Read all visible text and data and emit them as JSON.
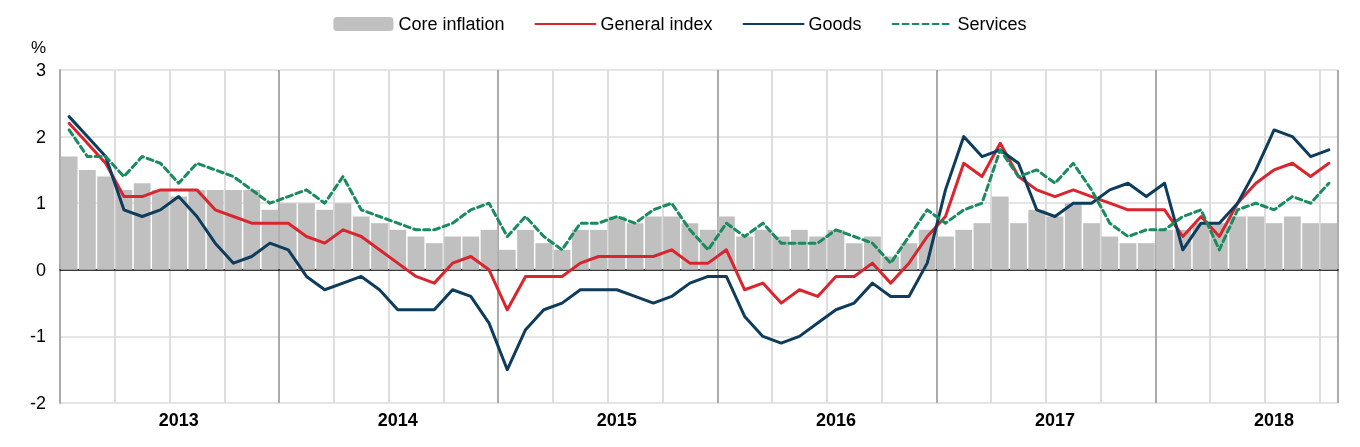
{
  "chart_data": {
    "type": "bar",
    "ylabel": "%",
    "categories": [
      null,
      null,
      null,
      null,
      null,
      null,
      "2013",
      null,
      null,
      null,
      null,
      null,
      null,
      null,
      null,
      null,
      null,
      null,
      "2014",
      null,
      null,
      null,
      null,
      null,
      null,
      null,
      null,
      null,
      null,
      null,
      "2015",
      null,
      null,
      null,
      null,
      null,
      null,
      null,
      null,
      null,
      null,
      null,
      "2016",
      null,
      null,
      null,
      null,
      null,
      null,
      null,
      null,
      null,
      null,
      null,
      "2017",
      null,
      null,
      null,
      null,
      null,
      null,
      null,
      null,
      null,
      null,
      null,
      "2018",
      null,
      null,
      null
    ],
    "series": [
      {
        "name": "Core inflation",
        "color": "#c0c0c0",
        "values": [
          1.7,
          1.5,
          1.4,
          1.2,
          1.3,
          1.2,
          1.1,
          1.2,
          1.2,
          1.2,
          1.2,
          0.9,
          1.0,
          1.0,
          0.9,
          1.0,
          0.8,
          0.7,
          0.6,
          0.5,
          0.4,
          0.5,
          0.5,
          0.6,
          0.3,
          0.6,
          0.4,
          0.3,
          0.6,
          0.6,
          0.8,
          0.7,
          0.8,
          0.8,
          0.7,
          0.6,
          0.8,
          0.5,
          0.6,
          0.5,
          0.6,
          0.5,
          0.6,
          0.4,
          0.5,
          0.2,
          0.4,
          0.6,
          0.5,
          0.6,
          0.7,
          1.1,
          0.7,
          0.9,
          0.8,
          1.0,
          0.7,
          0.5,
          0.4,
          0.4,
          0.6,
          0.6,
          0.7,
          0.7,
          0.8,
          0.8,
          0.7,
          0.8,
          0.7,
          0.7
        ]
      },
      {
        "name": "General index",
        "type": "line",
        "color": "#d9262e",
        "line_style": "solid",
        "values": [
          2.2,
          1.9,
          1.6,
          1.1,
          1.1,
          1.2,
          1.2,
          1.2,
          0.9,
          0.8,
          0.7,
          0.7,
          0.7,
          0.5,
          0.4,
          0.6,
          0.5,
          0.3,
          0.1,
          -0.1,
          -0.2,
          0.1,
          0.2,
          0.0,
          -0.6,
          -0.1,
          -0.1,
          -0.1,
          0.1,
          0.2,
          0.2,
          0.2,
          0.2,
          0.3,
          0.1,
          0.1,
          0.3,
          -0.3,
          -0.2,
          -0.5,
          -0.3,
          -0.4,
          -0.1,
          -0.1,
          0.1,
          -0.2,
          0.1,
          0.5,
          0.8,
          1.6,
          1.4,
          1.9,
          1.4,
          1.2,
          1.1,
          1.2,
          1.1,
          1.0,
          0.9,
          0.9,
          0.9,
          0.5,
          0.8,
          0.5,
          1.0,
          1.3,
          1.5,
          1.6,
          1.4,
          1.6
        ]
      },
      {
        "name": "Goods",
        "type": "line",
        "color": "#0d3c5c",
        "line_style": "solid",
        "values": [
          2.3,
          2.0,
          1.7,
          0.9,
          0.8,
          0.9,
          1.1,
          0.8,
          0.4,
          0.1,
          0.2,
          0.4,
          0.3,
          -0.1,
          -0.3,
          -0.2,
          -0.1,
          -0.3,
          -0.6,
          -0.6,
          -0.6,
          -0.3,
          -0.4,
          -0.8,
          -1.5,
          -0.9,
          -0.6,
          -0.5,
          -0.3,
          -0.3,
          -0.3,
          -0.4,
          -0.5,
          -0.4,
          -0.2,
          -0.1,
          -0.1,
          -0.7,
          -1.0,
          -1.1,
          -1.0,
          -0.8,
          -0.6,
          -0.5,
          -0.2,
          -0.4,
          -0.4,
          0.1,
          1.2,
          2.0,
          1.7,
          1.8,
          1.6,
          0.9,
          0.8,
          1.0,
          1.0,
          1.2,
          1.3,
          1.1,
          1.3,
          0.3,
          0.7,
          0.7,
          1.0,
          1.5,
          2.1,
          2.0,
          1.7,
          1.8
        ]
      },
      {
        "name": "Services",
        "type": "line",
        "color": "#1a8a5f",
        "line_style": "dashed",
        "values": [
          2.1,
          1.7,
          1.7,
          1.4,
          1.7,
          1.6,
          1.3,
          1.6,
          1.5,
          1.4,
          1.2,
          1.0,
          1.1,
          1.2,
          1.0,
          1.4,
          0.9,
          0.8,
          0.7,
          0.6,
          0.6,
          0.7,
          0.9,
          1.0,
          0.5,
          0.8,
          0.5,
          0.3,
          0.7,
          0.7,
          0.8,
          0.7,
          0.9,
          1.0,
          0.6,
          0.3,
          0.7,
          0.5,
          0.7,
          0.4,
          0.4,
          0.4,
          0.6,
          0.5,
          0.4,
          0.1,
          0.5,
          0.9,
          0.7,
          0.9,
          1.0,
          1.8,
          1.4,
          1.5,
          1.3,
          1.6,
          1.2,
          0.7,
          0.5,
          0.6,
          0.6,
          0.8,
          0.9,
          0.3,
          0.9,
          1.0,
          0.9,
          1.1,
          1.0,
          1.3
        ]
      }
    ],
    "ylim": [
      -2,
      3
    ],
    "yticks": [
      -2,
      -1,
      0,
      1,
      2,
      3
    ],
    "grid": true,
    "legend": "top"
  }
}
